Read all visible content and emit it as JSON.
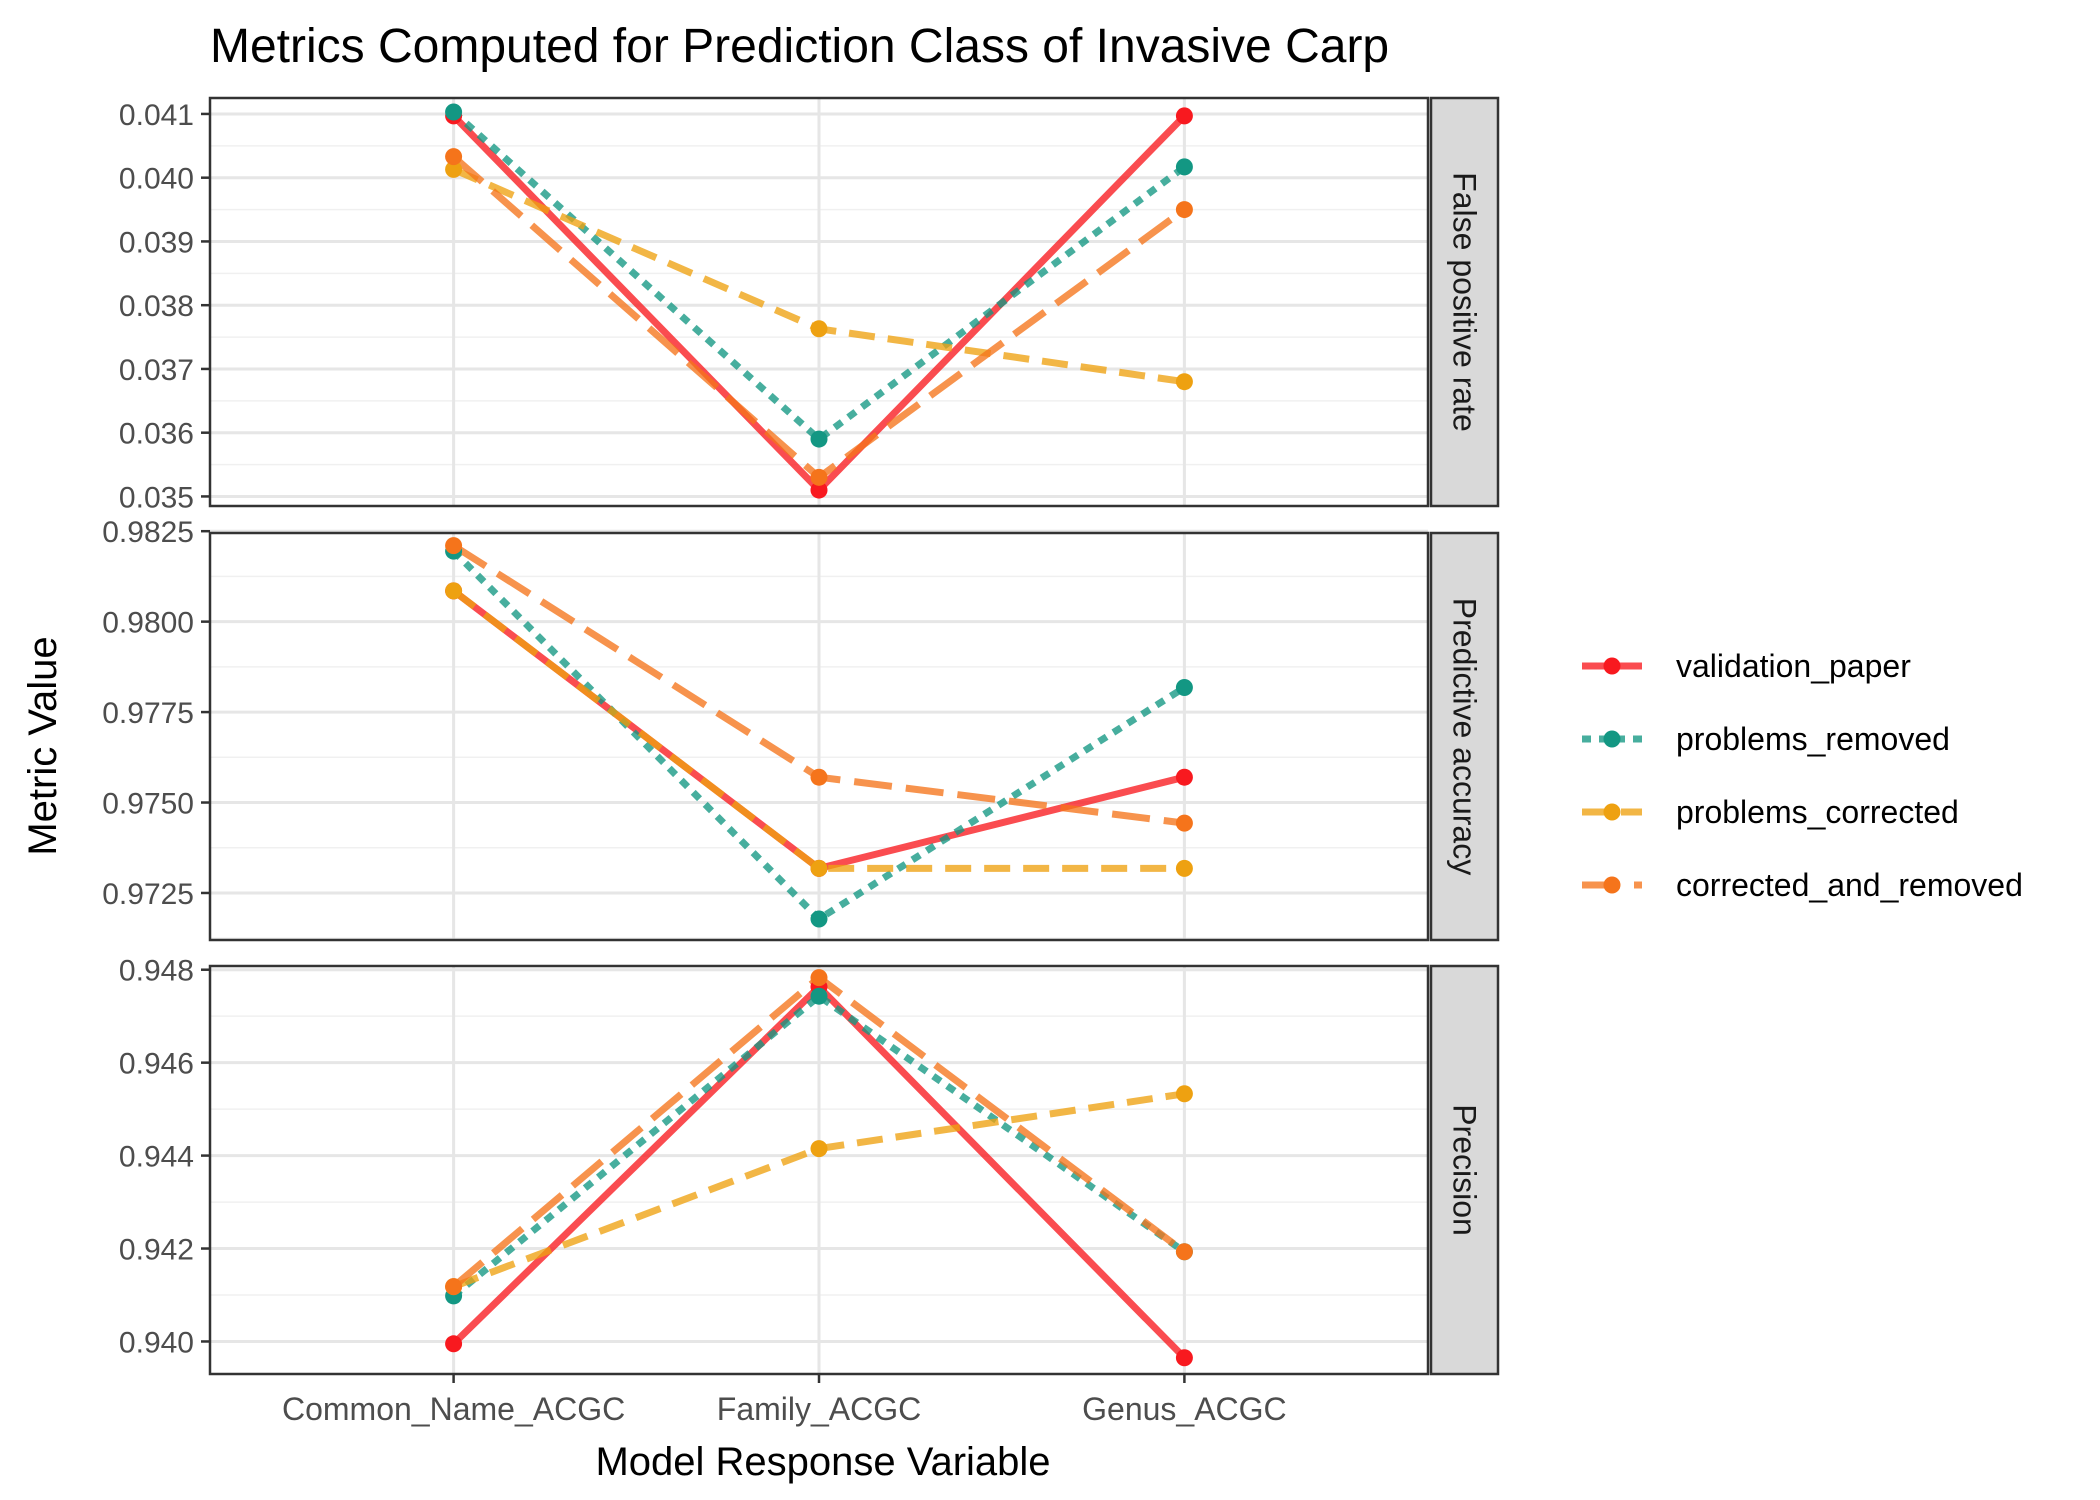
{
  "chart_data": {
    "type": "line",
    "title": "Metrics Computed for Prediction Class of Invasive Carp",
    "xlabel": "Model Response Variable",
    "ylabel": "Metric Value",
    "categories": [
      "Common_Name_ACGC",
      "Family_ACGC",
      "Genus_ACGC"
    ],
    "legend_position": "right",
    "grid": true,
    "series_styles": [
      {
        "name": "validation_paper",
        "color": "#f8191f",
        "dash": "solid"
      },
      {
        "name": "problems_removed",
        "color": "#139783",
        "dash": "dotted"
      },
      {
        "name": "problems_corrected",
        "color": "#eea111",
        "dash": "dashed"
      },
      {
        "name": "corrected_and_removed",
        "color": "#f5741b",
        "dash": "longdash"
      }
    ],
    "panels": [
      {
        "strip": "False positive rate",
        "ylim": [
          0.03485,
          0.04125
        ],
        "ticks": [
          0.035,
          0.036,
          0.037,
          0.038,
          0.039,
          0.04,
          0.041
        ],
        "tick_labels": [
          "0.035",
          "0.036",
          "0.037",
          "0.038",
          "0.039",
          "0.040",
          "0.041"
        ],
        "series": [
          {
            "name": "validation_paper",
            "values": [
              0.04097,
              0.0351,
              0.04097
            ]
          },
          {
            "name": "problems_removed",
            "values": [
              0.04103,
              0.0359,
              0.04017
            ]
          },
          {
            "name": "problems_corrected",
            "values": [
              0.04013,
              0.03763,
              0.0368
            ]
          },
          {
            "name": "corrected_and_removed",
            "values": [
              0.04033,
              0.0353,
              0.0395
            ]
          }
        ]
      },
      {
        "strip": "Predictive accuracy",
        "ylim": [
          0.9712,
          0.98245
        ],
        "ticks": [
          0.9725,
          0.975,
          0.9775,
          0.98,
          0.9825
        ],
        "tick_labels": [
          "0.9725",
          "0.9750",
          "0.9775",
          "0.9800",
          "0.9825"
        ],
        "series": [
          {
            "name": "validation_paper",
            "values": [
              0.98085,
              0.97318,
              0.9757
            ]
          },
          {
            "name": "problems_removed",
            "values": [
              0.98195,
              0.97178,
              0.97818
            ]
          },
          {
            "name": "problems_corrected",
            "values": [
              0.98085,
              0.97318,
              0.97318
            ]
          },
          {
            "name": "corrected_and_removed",
            "values": [
              0.9821,
              0.9757,
              0.97443
            ]
          }
        ]
      },
      {
        "strip": "Precision",
        "ylim": [
          0.9393,
          0.94808
        ],
        "ticks": [
          0.94,
          0.942,
          0.944,
          0.946,
          0.948
        ],
        "tick_labels": [
          "0.940",
          "0.942",
          "0.944",
          "0.946",
          "0.948"
        ],
        "series": [
          {
            "name": "validation_paper",
            "values": [
              0.93995,
              0.94763,
              0.93965
            ]
          },
          {
            "name": "problems_removed",
            "values": [
              0.94098,
              0.94743,
              0.94193
            ]
          },
          {
            "name": "problems_corrected",
            "values": [
              0.94118,
              0.94415,
              0.94533
            ]
          },
          {
            "name": "corrected_and_removed",
            "values": [
              0.94118,
              0.94783,
              0.94193
            ]
          }
        ]
      }
    ]
  }
}
